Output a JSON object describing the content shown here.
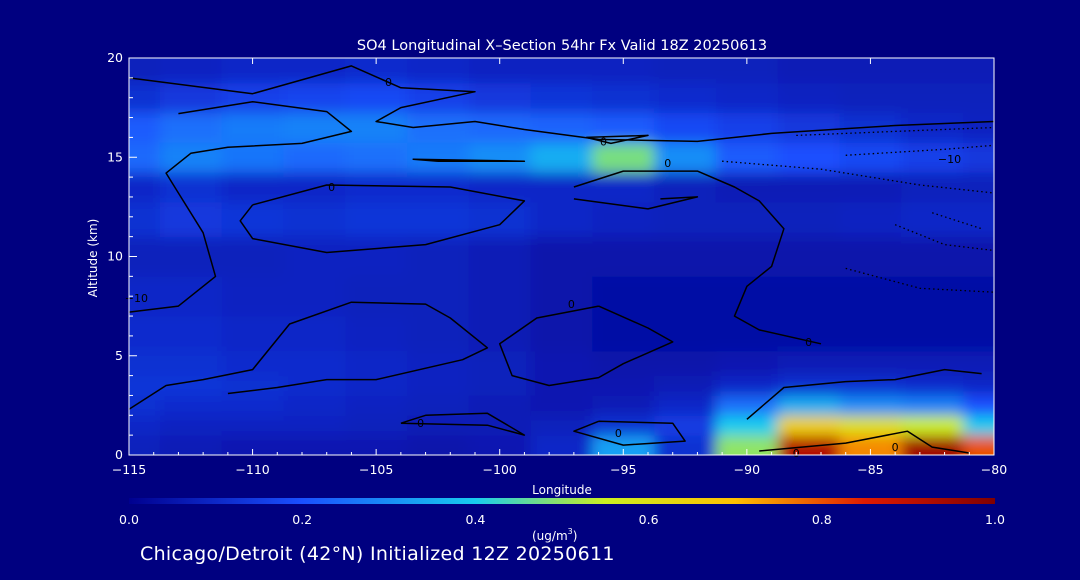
{
  "chart_data": {
    "type": "heatmap",
    "title": "SO4 Longitudinal X–Section 54hr  Fx Valid 18Z 20250613",
    "xlabel": "Longitude",
    "ylabel": "Altitude (km)",
    "xlim": [
      -115,
      -80
    ],
    "ylim": [
      0,
      20
    ],
    "x_ticks": [
      -115,
      -110,
      -105,
      -100,
      -95,
      -90,
      -85,
      -80
    ],
    "x_tick_labels": [
      "−115",
      "−110",
      "−105",
      "−100",
      "−95",
      "−90",
      "−85",
      "−80"
    ],
    "y_ticks": [
      0,
      5,
      10,
      15,
      20
    ],
    "y_tick_labels": [
      "0",
      "5",
      "10",
      "15",
      "20"
    ],
    "colorbar": {
      "min": 0.0,
      "max": 1.0,
      "ticks": [
        0.0,
        0.2,
        0.4,
        0.6,
        0.8,
        1.0
      ],
      "tick_labels": [
        "0.0",
        "0.2",
        "0.4",
        "0.6",
        "0.8",
        "1.0"
      ],
      "units_prefix": "(ug/m",
      "units_sup": "3",
      "units_suffix": ")"
    },
    "concentration_grid": {
      "x": [
        -115,
        -112.5,
        -110,
        -107.5,
        -105,
        -102.5,
        -100,
        -97.5,
        -95,
        -92.5,
        -90,
        -87.5,
        -85,
        -82.5,
        -80
      ],
      "y": [
        0.5,
        1.5,
        2.5,
        3.5,
        4.5,
        6,
        8,
        10,
        12,
        13.5,
        15,
        16.5,
        18,
        19.5
      ],
      "values": [
        [
          0.08,
          0.07,
          0.06,
          0.06,
          0.06,
          0.05,
          0.06,
          0.1,
          0.33,
          0.12,
          0.5,
          0.92,
          0.75,
          0.95,
          0.8
        ],
        [
          0.1,
          0.09,
          0.09,
          0.09,
          0.08,
          0.07,
          0.07,
          0.08,
          0.12,
          0.15,
          0.4,
          0.65,
          0.6,
          0.55,
          0.4
        ],
        [
          0.12,
          0.11,
          0.11,
          0.1,
          0.09,
          0.08,
          0.07,
          0.06,
          0.07,
          0.1,
          0.25,
          0.35,
          0.3,
          0.28,
          0.2
        ],
        [
          0.13,
          0.13,
          0.12,
          0.11,
          0.1,
          0.09,
          0.08,
          0.06,
          0.06,
          0.07,
          0.1,
          0.12,
          0.12,
          0.11,
          0.1
        ],
        [
          0.12,
          0.12,
          0.11,
          0.11,
          0.1,
          0.09,
          0.08,
          0.06,
          0.05,
          0.05,
          0.06,
          0.07,
          0.07,
          0.07,
          0.07
        ],
        [
          0.11,
          0.11,
          0.1,
          0.1,
          0.09,
          0.08,
          0.07,
          0.05,
          0.04,
          0.04,
          0.04,
          0.04,
          0.04,
          0.04,
          0.04
        ],
        [
          0.1,
          0.1,
          0.09,
          0.09,
          0.08,
          0.08,
          0.07,
          0.05,
          0.04,
          0.04,
          0.04,
          0.04,
          0.04,
          0.04,
          0.04
        ],
        [
          0.08,
          0.08,
          0.08,
          0.09,
          0.09,
          0.08,
          0.07,
          0.05,
          0.05,
          0.05,
          0.05,
          0.05,
          0.05,
          0.05,
          0.05
        ],
        [
          0.12,
          0.14,
          0.13,
          0.12,
          0.13,
          0.13,
          0.12,
          0.1,
          0.09,
          0.08,
          0.08,
          0.08,
          0.09,
          0.1,
          0.1
        ],
        [
          0.1,
          0.12,
          0.1,
          0.1,
          0.11,
          0.11,
          0.1,
          0.1,
          0.1,
          0.08,
          0.07,
          0.07,
          0.07,
          0.08,
          0.08
        ],
        [
          0.24,
          0.28,
          0.26,
          0.24,
          0.25,
          0.27,
          0.3,
          0.35,
          0.48,
          0.3,
          0.22,
          0.2,
          0.18,
          0.16,
          0.14
        ],
        [
          0.22,
          0.25,
          0.27,
          0.28,
          0.28,
          0.25,
          0.24,
          0.23,
          0.22,
          0.18,
          0.16,
          0.14,
          0.12,
          0.1,
          0.09
        ],
        [
          0.12,
          0.14,
          0.16,
          0.17,
          0.18,
          0.16,
          0.14,
          0.13,
          0.12,
          0.11,
          0.1,
          0.09,
          0.08,
          0.08,
          0.08
        ],
        [
          0.08,
          0.09,
          0.1,
          0.1,
          0.11,
          0.1,
          0.09,
          0.09,
          0.09,
          0.08,
          0.08,
          0.07,
          0.07,
          0.07,
          0.07
        ]
      ]
    },
    "contour_lines": [
      {
        "label": "0",
        "points": [
          [
            -115,
            19
          ],
          [
            -110,
            18.2
          ],
          [
            -106,
            19.6
          ],
          [
            -104,
            18.5
          ],
          [
            -101,
            18.3
          ],
          [
            -104,
            17.5
          ],
          [
            -105,
            16.8
          ],
          [
            -103.5,
            16.5
          ],
          [
            -101,
            16.8
          ],
          [
            -99,
            16.4
          ],
          [
            -96,
            15.9
          ],
          [
            -92,
            15.8
          ],
          [
            -89,
            16.2
          ],
          [
            -84,
            16.6
          ],
          [
            -80,
            16.8
          ]
        ]
      },
      {
        "label": "0",
        "points": [
          [
            -113,
            17.2
          ],
          [
            -110,
            17.8
          ],
          [
            -107,
            17.3
          ],
          [
            -106,
            16.3
          ],
          [
            -108,
            15.7
          ],
          [
            -111,
            15.5
          ],
          [
            -112.5,
            15.2
          ],
          [
            -113.5,
            14.2
          ],
          [
            -113,
            13.2
          ],
          [
            -112,
            11.2
          ],
          [
            -111.5,
            9
          ],
          [
            -113,
            7.5
          ],
          [
            -115,
            7.2
          ]
        ]
      },
      {
        "label": "0",
        "points": [
          [
            -110,
            12.6
          ],
          [
            -107,
            13.6
          ],
          [
            -102,
            13.5
          ],
          [
            -99,
            12.8
          ],
          [
            -100,
            11.6
          ],
          [
            -103,
            10.6
          ],
          [
            -107,
            10.2
          ],
          [
            -110,
            10.9
          ],
          [
            -110.5,
            11.8
          ],
          [
            -110,
            12.6
          ]
        ]
      },
      {
        "label": "0",
        "points": [
          [
            -102.5,
            14.8
          ],
          [
            -99,
            14.8
          ],
          [
            -103.5,
            14.9
          ],
          [
            -102.5,
            14.8
          ]
        ]
      },
      {
        "label": "0",
        "points": [
          [
            -96.5,
            16
          ],
          [
            -94,
            16.1
          ],
          [
            -95.5,
            15.7
          ],
          [
            -96.5,
            16
          ]
        ]
      },
      {
        "label": "0",
        "points": [
          [
            -97,
            13.5
          ],
          [
            -95,
            14.3
          ],
          [
            -92,
            14.3
          ],
          [
            -90.5,
            13.5
          ],
          [
            -89.5,
            12.8
          ],
          [
            -88.5,
            11.4
          ],
          [
            -89,
            9.5
          ],
          [
            -90,
            8.5
          ],
          [
            -90.5,
            7
          ],
          [
            -89.5,
            6.3
          ],
          [
            -87,
            5.6
          ]
        ]
      },
      {
        "label": "0",
        "points": [
          [
            -97,
            12.9
          ],
          [
            -94,
            12.4
          ],
          [
            -92,
            13
          ],
          [
            -93.5,
            12.9
          ]
        ]
      },
      {
        "label": "0",
        "points": [
          [
            -115,
            2.3
          ],
          [
            -113.5,
            3.5
          ],
          [
            -112,
            3.8
          ],
          [
            -110,
            4.3
          ],
          [
            -108.5,
            6.6
          ],
          [
            -106,
            7.7
          ],
          [
            -103,
            7.6
          ],
          [
            -102,
            6.9
          ],
          [
            -100.5,
            5.4
          ],
          [
            -101.5,
            4.8
          ],
          [
            -105,
            3.8
          ],
          [
            -107,
            3.8
          ],
          [
            -109,
            3.4
          ],
          [
            -111,
            3.1
          ]
        ]
      },
      {
        "label": "0",
        "points": [
          [
            -104,
            1.6
          ],
          [
            -100.5,
            1.5
          ],
          [
            -99,
            1.0
          ],
          [
            -100.5,
            2.1
          ],
          [
            -103,
            2.0
          ],
          [
            -104,
            1.6
          ]
        ]
      },
      {
        "label": "0",
        "points": [
          [
            -96,
            7.5
          ],
          [
            -94,
            6.4
          ],
          [
            -93,
            5.7
          ],
          [
            -95,
            4.6
          ],
          [
            -96,
            3.9
          ],
          [
            -98,
            3.5
          ],
          [
            -99.5,
            4.0
          ],
          [
            -100,
            5.6
          ],
          [
            -98.5,
            6.9
          ],
          [
            -96,
            7.5
          ]
        ]
      },
      {
        "label": "0",
        "points": [
          [
            -96,
            1.7
          ],
          [
            -93,
            1.6
          ],
          [
            -92.5,
            0.7
          ],
          [
            -95,
            0.5
          ],
          [
            -97,
            1.2
          ],
          [
            -96,
            1.7
          ]
        ]
      },
      {
        "label": "0",
        "points": [
          [
            -90,
            1.8
          ],
          [
            -88.5,
            3.4
          ],
          [
            -86,
            3.7
          ],
          [
            -84,
            3.8
          ],
          [
            -82,
            4.3
          ],
          [
            -80.5,
            4.1
          ]
        ]
      },
      {
        "label": "0",
        "points": [
          [
            -89.5,
            0.2
          ],
          [
            -86,
            0.6
          ],
          [
            -83.5,
            1.2
          ],
          [
            -82.5,
            0.4
          ],
          [
            -81,
            0.1
          ]
        ]
      }
    ],
    "contour_labels": [
      {
        "text": "0",
        "x": -104.5,
        "y": 18.8
      },
      {
        "text": "0",
        "x": -106.8,
        "y": 13.5
      },
      {
        "text": "0",
        "x": -95.8,
        "y": 15.8
      },
      {
        "text": "0",
        "x": -93.2,
        "y": 14.7
      },
      {
        "text": "0",
        "x": -97.1,
        "y": 7.6
      },
      {
        "text": "0",
        "x": -87.5,
        "y": 5.7
      },
      {
        "text": "0",
        "x": -103.2,
        "y": 1.6
      },
      {
        "text": "0",
        "x": -95.2,
        "y": 1.1
      },
      {
        "text": "0",
        "x": -88,
        "y": 0.1
      },
      {
        "text": "0",
        "x": -84,
        "y": 0.4
      },
      {
        "text": "−10",
        "x": -81.8,
        "y": 14.9
      },
      {
        "text": "−10",
        "x": -114.7,
        "y": 7.9
      }
    ],
    "dotted_contours": [
      {
        "points": [
          [
            -86,
            15.1
          ],
          [
            -82,
            15.4
          ],
          [
            -80,
            15.6
          ]
        ]
      },
      {
        "points": [
          [
            -88,
            16.1
          ],
          [
            -84,
            16.3
          ],
          [
            -80,
            16.5
          ]
        ]
      },
      {
        "points": [
          [
            -91,
            14.8
          ],
          [
            -87,
            14.4
          ],
          [
            -83,
            13.6
          ],
          [
            -80,
            13.2
          ]
        ]
      },
      {
        "points": [
          [
            -82.5,
            12.2
          ],
          [
            -80.5,
            11.4
          ]
        ]
      },
      {
        "points": [
          [
            -84,
            11.6
          ],
          [
            -82,
            10.6
          ],
          [
            -80,
            10.3
          ]
        ]
      },
      {
        "points": [
          [
            -86,
            9.4
          ],
          [
            -83,
            8.4
          ],
          [
            -80,
            8.2
          ]
        ]
      }
    ]
  },
  "footer_text": "Chicago/Detroit (42°N) Initialized 12Z 20250611"
}
